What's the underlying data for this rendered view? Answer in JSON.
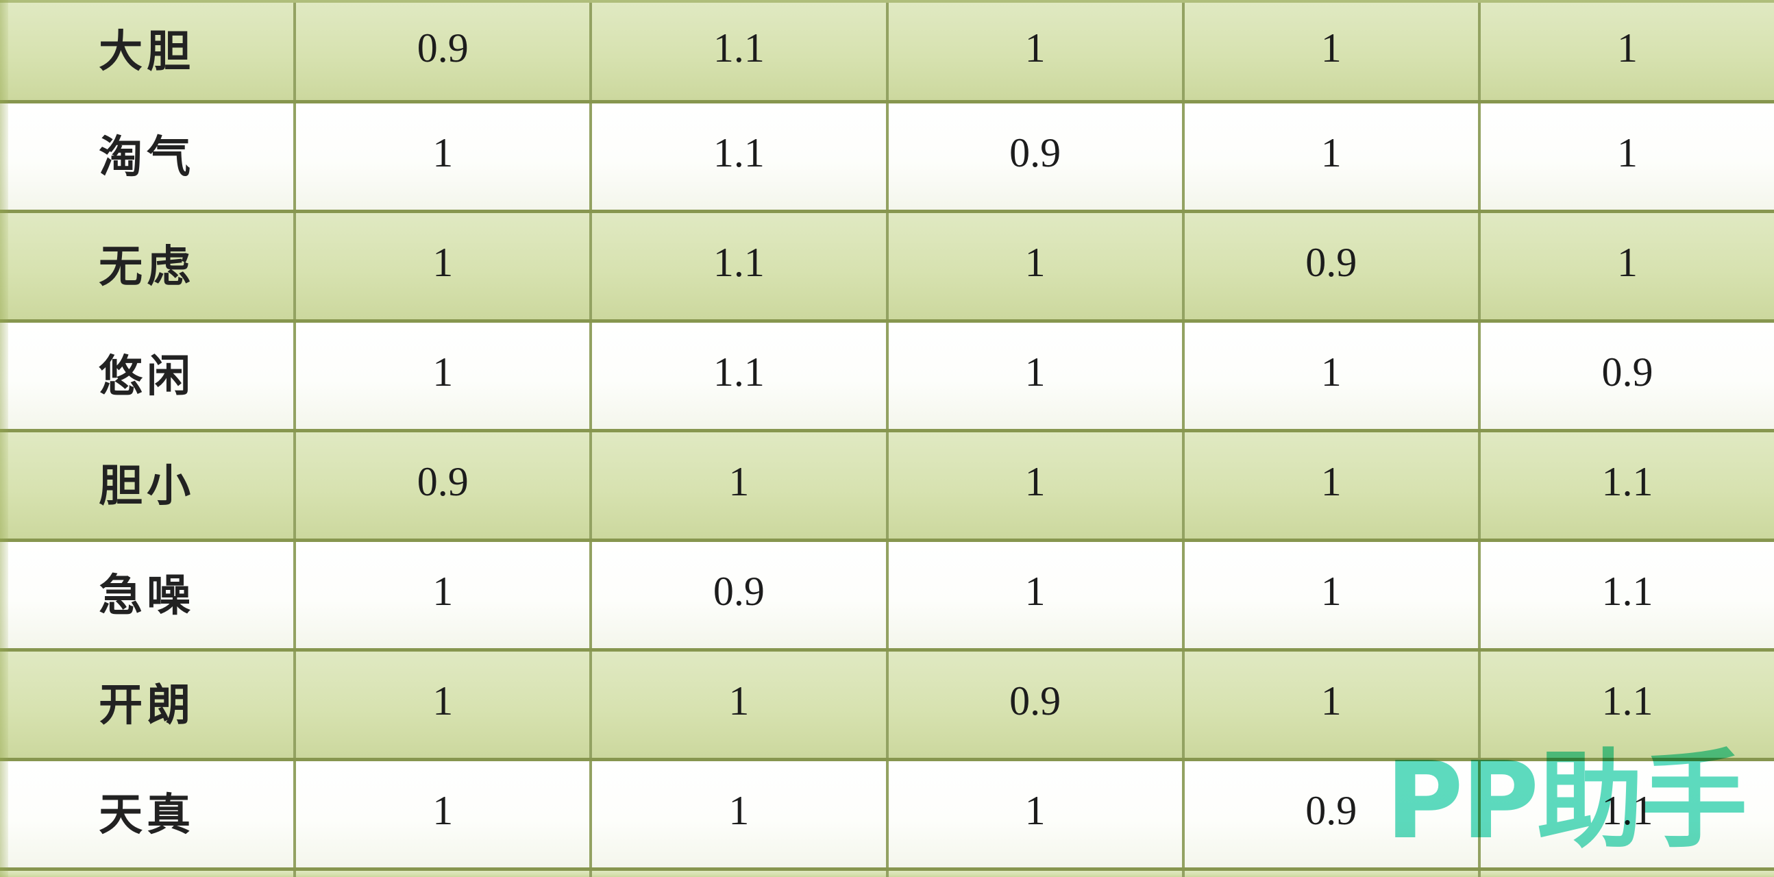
{
  "table": {
    "description_visible_columns": 6,
    "rows": [
      {
        "label": "大胆",
        "values": [
          "0.9",
          "1.1",
          "1",
          "1",
          "1"
        ]
      },
      {
        "label": "淘气",
        "values": [
          "1",
          "1.1",
          "0.9",
          "1",
          "1"
        ]
      },
      {
        "label": "无虑",
        "values": [
          "1",
          "1.1",
          "1",
          "0.9",
          "1"
        ]
      },
      {
        "label": "悠闲",
        "values": [
          "1",
          "1.1",
          "1",
          "1",
          "0.9"
        ]
      },
      {
        "label": "胆小",
        "values": [
          "0.9",
          "1",
          "1",
          "1",
          "1.1"
        ]
      },
      {
        "label": "急噪",
        "values": [
          "1",
          "0.9",
          "1",
          "1",
          "1.1"
        ]
      },
      {
        "label": "开朗",
        "values": [
          "1",
          "1",
          "0.9",
          "1",
          "1.1"
        ]
      },
      {
        "label": "天真",
        "values": [
          "1",
          "1",
          "1",
          "0.9",
          "1.1"
        ]
      }
    ]
  },
  "watermark": {
    "text": "PP助手",
    "color": "#4fd7ba"
  },
  "colors": {
    "row_green": "#d7e2b0",
    "row_white": "#fdfefb",
    "grid_line_horizontal": "#87964f",
    "grid_line_vertical": "#93a262",
    "text": "#1c1c1c"
  }
}
